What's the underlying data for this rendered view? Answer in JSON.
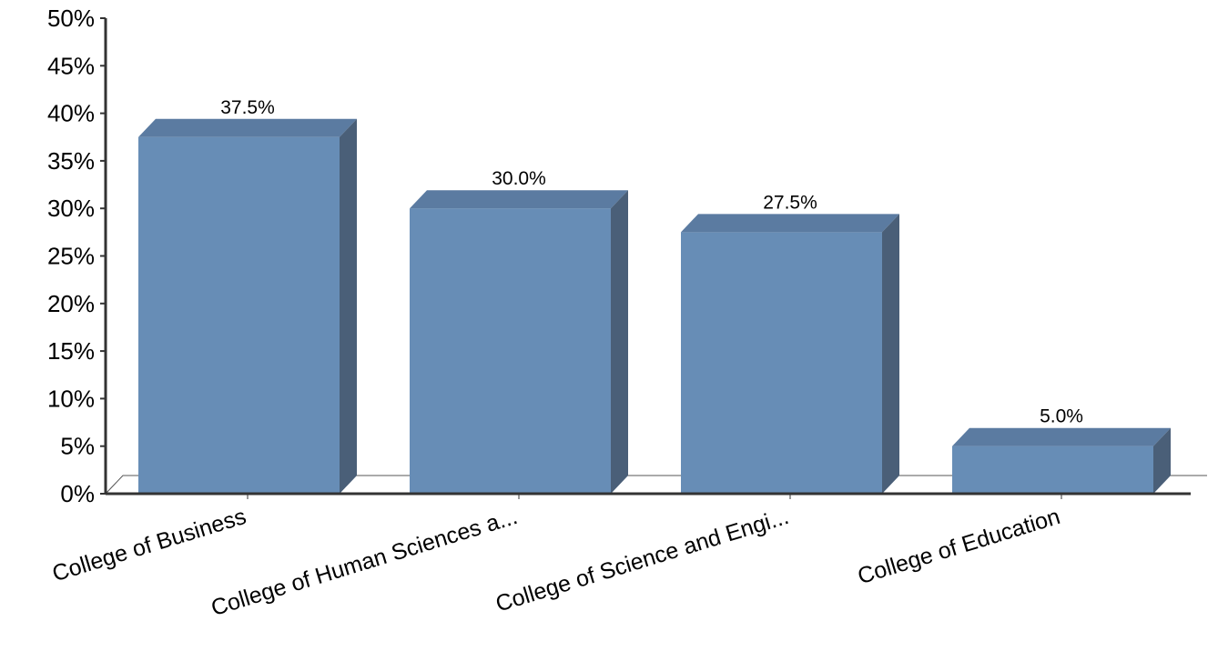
{
  "chart_data": {
    "type": "bar",
    "categories": [
      "College of Business",
      "College of Human Sciences a...",
      "College of Science and Engi...",
      "College of Education"
    ],
    "values": [
      37.5,
      30.0,
      27.5,
      5.0
    ],
    "value_labels": [
      "37.5%",
      "30.0%",
      "27.5%",
      "5.0%"
    ],
    "y_ticks": [
      "0%",
      "5%",
      "10%",
      "15%",
      "20%",
      "25%",
      "30%",
      "35%",
      "40%",
      "45%",
      "50%"
    ],
    "ylim": [
      0,
      50
    ],
    "title": "",
    "xlabel": "",
    "ylabel": "",
    "grid": false,
    "three_d": true,
    "colors": {
      "bar_front": "#678db6",
      "bar_top": "#5b7ba1",
      "bar_side": "#4a5f78",
      "axis": "#333333",
      "floor_line": "#555555"
    }
  }
}
